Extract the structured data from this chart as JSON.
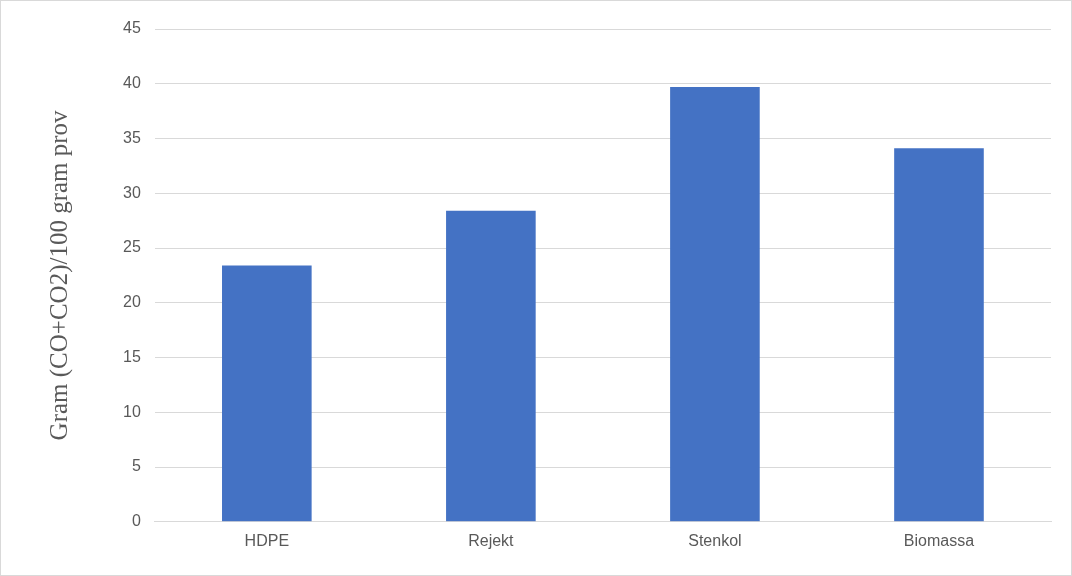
{
  "chart_data": {
    "type": "bar",
    "ylabel": "Gram (CO+CO2)/100 gram prov",
    "categories": [
      "HDPE",
      "Rejekt",
      "Stenkol",
      "Biomassa"
    ],
    "values": [
      23.4,
      28.4,
      39.7,
      34.1
    ],
    "color": "#4472c4",
    "ylim": [
      0,
      45
    ],
    "yticks": [
      0,
      5,
      10,
      15,
      20,
      25,
      30,
      35,
      40,
      45
    ],
    "grid": "y"
  }
}
